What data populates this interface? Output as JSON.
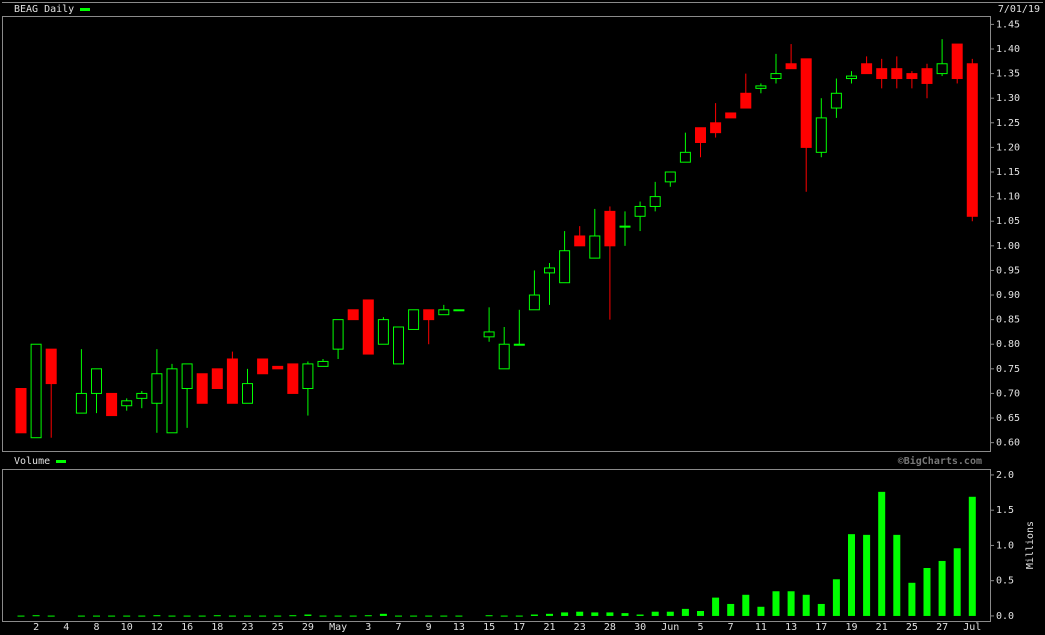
{
  "chart_data": [
    {
      "type": "candlestick",
      "title": "BEAG Daily",
      "date": "7/01/19",
      "watermark": "©BigCharts.com",
      "up_color": "#00ff00",
      "down_color": "#ff0000",
      "open": [
        0.71,
        0.61,
        0.79,
        null,
        0.66,
        0.7,
        0.7,
        0.675,
        0.69,
        0.68,
        0.62,
        0.71,
        0.74,
        0.75,
        0.77,
        0.68,
        0.77,
        0.755,
        0.76,
        0.71,
        0.755,
        0.79,
        0.87,
        0.89,
        0.8,
        0.76,
        0.83,
        0.87,
        0.86,
        0.87,
        null,
        0.815,
        0.75,
        0.8,
        0.87,
        0.945,
        0.925,
        1.02,
        0.975,
        1.07,
        1.04,
        1.06,
        1.08,
        1.13,
        1.17,
        1.24,
        1.25,
        1.27,
        1.31,
        1.32,
        1.34,
        1.37,
        1.38,
        1.19,
        1.28,
        1.34,
        1.37,
        1.36,
        1.36,
        1.35,
        1.36,
        1.35,
        1.41,
        1.37
      ],
      "high": [
        0.71,
        0.8,
        0.79,
        null,
        0.79,
        0.75,
        0.7,
        0.69,
        0.705,
        0.79,
        0.76,
        0.76,
        0.74,
        0.75,
        0.785,
        0.75,
        0.77,
        0.755,
        0.76,
        0.765,
        0.77,
        0.85,
        0.87,
        0.89,
        0.855,
        0.835,
        0.87,
        0.87,
        0.88,
        0.87,
        null,
        0.875,
        0.835,
        0.87,
        0.95,
        0.965,
        1.03,
        1.04,
        1.075,
        1.08,
        1.07,
        1.09,
        1.13,
        1.15,
        1.23,
        1.24,
        1.29,
        1.27,
        1.35,
        1.33,
        1.39,
        1.41,
        1.38,
        1.3,
        1.34,
        1.355,
        1.385,
        1.38,
        1.385,
        1.355,
        1.37,
        1.42,
        1.41,
        1.38
      ],
      "low": [
        0.62,
        0.61,
        0.61,
        null,
        0.66,
        0.66,
        0.655,
        0.665,
        0.67,
        0.62,
        0.62,
        0.63,
        0.68,
        0.71,
        0.68,
        0.68,
        0.74,
        0.75,
        0.7,
        0.655,
        0.755,
        0.77,
        0.85,
        0.78,
        0.8,
        0.76,
        0.83,
        0.8,
        0.86,
        0.87,
        null,
        0.805,
        0.75,
        0.8,
        0.87,
        0.88,
        0.925,
        1.0,
        0.975,
        0.85,
        1.0,
        1.03,
        1.07,
        1.12,
        1.17,
        1.18,
        1.22,
        1.26,
        1.28,
        1.31,
        1.33,
        1.36,
        1.11,
        1.18,
        1.26,
        1.33,
        1.35,
        1.32,
        1.32,
        1.32,
        1.3,
        1.345,
        1.33,
        1.05
      ],
      "close": [
        0.62,
        0.8,
        0.72,
        null,
        0.7,
        0.75,
        0.655,
        0.685,
        0.7,
        0.74,
        0.75,
        0.76,
        0.68,
        0.71,
        0.68,
        0.72,
        0.74,
        0.75,
        0.7,
        0.76,
        0.765,
        0.85,
        0.85,
        0.78,
        0.85,
        0.835,
        0.87,
        0.85,
        0.87,
        0.87,
        null,
        0.825,
        0.8,
        0.8,
        0.9,
        0.955,
        0.99,
        1.0,
        1.02,
        1.0,
        1.04,
        1.08,
        1.1,
        1.15,
        1.19,
        1.21,
        1.23,
        1.26,
        1.28,
        1.325,
        1.35,
        1.36,
        1.2,
        1.26,
        1.31,
        1.345,
        1.35,
        1.34,
        1.34,
        1.34,
        1.33,
        1.37,
        1.34,
        1.06
      ],
      "ylim": [
        0.583,
        1.463
      ],
      "yticks": [
        {
          "value": 0.6,
          "label": "0.60"
        },
        0.65,
        {
          "value": 0.7,
          "label": "0.70"
        },
        0.75,
        {
          "value": 0.8,
          "label": "0.80"
        },
        0.85,
        {
          "value": 0.9,
          "label": "0.90"
        },
        0.95,
        {
          "value": 1.0,
          "label": "1.00"
        },
        1.05,
        {
          "value": 1.1,
          "label": "1.10"
        },
        1.15,
        {
          "value": 1.2,
          "label": "1.20"
        },
        1.25,
        {
          "value": 1.3,
          "label": "1.30"
        },
        1.35,
        {
          "value": 1.4,
          "label": "1.40"
        },
        1.45
      ]
    },
    {
      "type": "bar",
      "title": "Volume",
      "y_label": "Millions",
      "color": "#00ff00",
      "categories": [
        null,
        "2",
        null,
        "4",
        null,
        "8",
        null,
        "10",
        null,
        "12",
        null,
        "16",
        null,
        "18",
        null,
        "23",
        null,
        "25",
        null,
        "29",
        null,
        "May",
        null,
        "3",
        null,
        "7",
        null,
        "9",
        null,
        "13",
        null,
        "15",
        null,
        "17",
        null,
        "21",
        null,
        "23",
        null,
        "28",
        null,
        "30",
        null,
        "Jun",
        null,
        "5",
        null,
        "7",
        null,
        "11",
        null,
        "13",
        null,
        "17",
        null,
        "19",
        null,
        "21",
        null,
        "25",
        null,
        "27",
        null,
        "Jul"
      ],
      "values": [
        0.005,
        0.01,
        0.005,
        null,
        0.005,
        0.005,
        0.005,
        0.005,
        0.005,
        0.01,
        0.005,
        0.005,
        0.005,
        0.01,
        0.005,
        0.005,
        0.005,
        0.005,
        0.01,
        0.02,
        0.005,
        0.005,
        0.005,
        0.01,
        0.03,
        0.005,
        0.005,
        0.005,
        0.005,
        0.005,
        null,
        0.01,
        0.005,
        0.005,
        0.02,
        0.03,
        0.05,
        0.06,
        0.05,
        0.05,
        0.04,
        0.02,
        0.06,
        0.06,
        0.1,
        0.07,
        0.26,
        0.17,
        0.3,
        0.13,
        0.35,
        0.35,
        0.3,
        0.17,
        0.52,
        1.16,
        1.15,
        1.76,
        1.15,
        0.47,
        0.68,
        0.78,
        0.96,
        1.69
      ],
      "ylim": [
        -0.086,
        2.07
      ],
      "yticks": [
        {
          "value": 0,
          "label": "0.0"
        },
        0.5,
        {
          "value": 1,
          "label": "1.0"
        },
        1.5,
        {
          "value": 2,
          "label": "2.0"
        }
      ]
    }
  ]
}
